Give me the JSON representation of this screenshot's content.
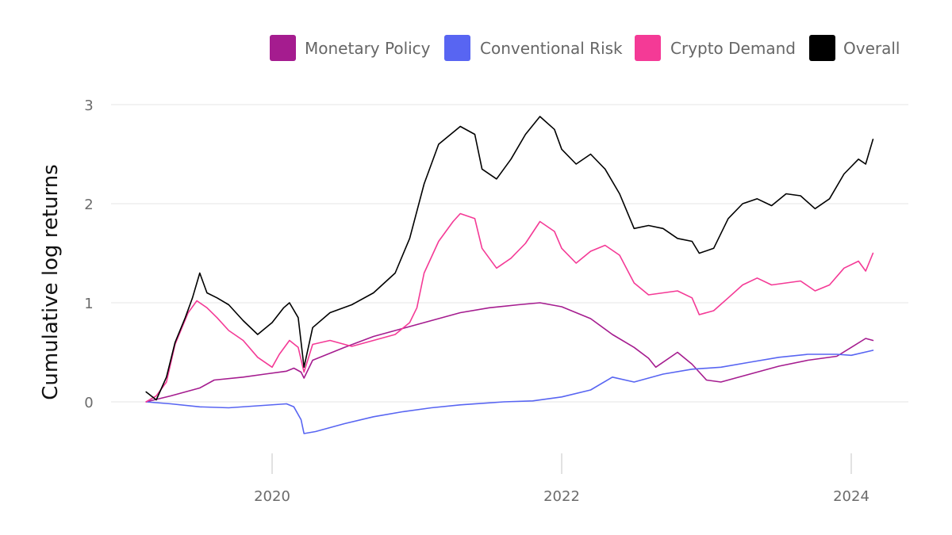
{
  "chart_data": {
    "type": "line",
    "ylabel": "Cumulative log returns",
    "xlabel": "",
    "x_ticks": [
      {
        "label": "2020",
        "value": 2020.0
      },
      {
        "label": "2022",
        "value": 2022.0
      },
      {
        "label": "2024",
        "value": 2024.0
      }
    ],
    "y_ticks": [
      {
        "label": "0",
        "value": 0
      },
      {
        "label": "1",
        "value": 1
      },
      {
        "label": "2",
        "value": 2
      },
      {
        "label": "3",
        "value": 3
      }
    ],
    "xlim": [
      2019.0,
      2024.4
    ],
    "ylim": [
      -0.55,
      3.15
    ],
    "grid": "horizontal",
    "legend": "top-right",
    "series": [
      {
        "name": "Monetary Policy",
        "color": "#a51c8f",
        "points": [
          [
            2019.13,
            0.0
          ],
          [
            2019.3,
            0.06
          ],
          [
            2019.5,
            0.14
          ],
          [
            2019.6,
            0.22
          ],
          [
            2019.8,
            0.25
          ],
          [
            2019.95,
            0.28
          ],
          [
            2020.1,
            0.31
          ],
          [
            2020.15,
            0.34
          ],
          [
            2020.2,
            0.3
          ],
          [
            2020.22,
            0.24
          ],
          [
            2020.28,
            0.42
          ],
          [
            2020.5,
            0.55
          ],
          [
            2020.7,
            0.66
          ],
          [
            2020.9,
            0.74
          ],
          [
            2021.1,
            0.82
          ],
          [
            2021.3,
            0.9
          ],
          [
            2021.5,
            0.95
          ],
          [
            2021.7,
            0.98
          ],
          [
            2021.85,
            1.0
          ],
          [
            2022.0,
            0.96
          ],
          [
            2022.2,
            0.84
          ],
          [
            2022.35,
            0.68
          ],
          [
            2022.5,
            0.55
          ],
          [
            2022.6,
            0.44
          ],
          [
            2022.65,
            0.35
          ],
          [
            2022.8,
            0.5
          ],
          [
            2022.9,
            0.38
          ],
          [
            2023.0,
            0.22
          ],
          [
            2023.1,
            0.2
          ],
          [
            2023.3,
            0.28
          ],
          [
            2023.5,
            0.36
          ],
          [
            2023.7,
            0.42
          ],
          [
            2023.9,
            0.46
          ],
          [
            2024.0,
            0.55
          ],
          [
            2024.1,
            0.64
          ],
          [
            2024.15,
            0.62
          ]
        ]
      },
      {
        "name": "Conventional Risk",
        "color": "#5865f2",
        "points": [
          [
            2019.13,
            0.0
          ],
          [
            2019.3,
            -0.02
          ],
          [
            2019.5,
            -0.05
          ],
          [
            2019.7,
            -0.06
          ],
          [
            2019.9,
            -0.04
          ],
          [
            2020.1,
            -0.02
          ],
          [
            2020.15,
            -0.05
          ],
          [
            2020.2,
            -0.18
          ],
          [
            2020.22,
            -0.32
          ],
          [
            2020.3,
            -0.3
          ],
          [
            2020.5,
            -0.22
          ],
          [
            2020.7,
            -0.15
          ],
          [
            2020.9,
            -0.1
          ],
          [
            2021.1,
            -0.06
          ],
          [
            2021.3,
            -0.03
          ],
          [
            2021.6,
            0.0
          ],
          [
            2021.8,
            0.01
          ],
          [
            2022.0,
            0.05
          ],
          [
            2022.2,
            0.12
          ],
          [
            2022.35,
            0.25
          ],
          [
            2022.5,
            0.2
          ],
          [
            2022.7,
            0.28
          ],
          [
            2022.9,
            0.33
          ],
          [
            2023.1,
            0.35
          ],
          [
            2023.3,
            0.4
          ],
          [
            2023.5,
            0.45
          ],
          [
            2023.7,
            0.48
          ],
          [
            2023.9,
            0.48
          ],
          [
            2024.0,
            0.47
          ],
          [
            2024.15,
            0.52
          ]
        ]
      },
      {
        "name": "Crypto Demand",
        "color": "#f43a96",
        "points": [
          [
            2019.13,
            0.0
          ],
          [
            2019.2,
            0.06
          ],
          [
            2019.27,
            0.2
          ],
          [
            2019.33,
            0.58
          ],
          [
            2019.42,
            0.9
          ],
          [
            2019.48,
            1.02
          ],
          [
            2019.55,
            0.95
          ],
          [
            2019.62,
            0.85
          ],
          [
            2019.7,
            0.72
          ],
          [
            2019.8,
            0.62
          ],
          [
            2019.9,
            0.45
          ],
          [
            2020.0,
            0.35
          ],
          [
            2020.05,
            0.48
          ],
          [
            2020.12,
            0.62
          ],
          [
            2020.18,
            0.55
          ],
          [
            2020.22,
            0.3
          ],
          [
            2020.28,
            0.58
          ],
          [
            2020.4,
            0.62
          ],
          [
            2020.55,
            0.56
          ],
          [
            2020.7,
            0.62
          ],
          [
            2020.85,
            0.68
          ],
          [
            2020.95,
            0.8
          ],
          [
            2021.0,
            0.95
          ],
          [
            2021.05,
            1.3
          ],
          [
            2021.15,
            1.62
          ],
          [
            2021.25,
            1.82
          ],
          [
            2021.3,
            1.9
          ],
          [
            2021.4,
            1.85
          ],
          [
            2021.45,
            1.55
          ],
          [
            2021.55,
            1.35
          ],
          [
            2021.65,
            1.45
          ],
          [
            2021.75,
            1.6
          ],
          [
            2021.85,
            1.82
          ],
          [
            2021.95,
            1.72
          ],
          [
            2022.0,
            1.55
          ],
          [
            2022.1,
            1.4
          ],
          [
            2022.2,
            1.52
          ],
          [
            2022.3,
            1.58
          ],
          [
            2022.4,
            1.48
          ],
          [
            2022.5,
            1.2
          ],
          [
            2022.6,
            1.08
          ],
          [
            2022.7,
            1.1
          ],
          [
            2022.8,
            1.12
          ],
          [
            2022.9,
            1.05
          ],
          [
            2022.95,
            0.88
          ],
          [
            2023.05,
            0.92
          ],
          [
            2023.15,
            1.05
          ],
          [
            2023.25,
            1.18
          ],
          [
            2023.35,
            1.25
          ],
          [
            2023.45,
            1.18
          ],
          [
            2023.55,
            1.2
          ],
          [
            2023.65,
            1.22
          ],
          [
            2023.75,
            1.12
          ],
          [
            2023.85,
            1.18
          ],
          [
            2023.95,
            1.35
          ],
          [
            2024.05,
            1.42
          ],
          [
            2024.1,
            1.32
          ],
          [
            2024.15,
            1.5
          ]
        ]
      },
      {
        "name": "Overall",
        "color": "#000000",
        "points": [
          [
            2019.13,
            0.1
          ],
          [
            2019.2,
            0.02
          ],
          [
            2019.27,
            0.25
          ],
          [
            2019.33,
            0.6
          ],
          [
            2019.4,
            0.85
          ],
          [
            2019.45,
            1.05
          ],
          [
            2019.5,
            1.3
          ],
          [
            2019.55,
            1.1
          ],
          [
            2019.62,
            1.05
          ],
          [
            2019.7,
            0.98
          ],
          [
            2019.8,
            0.82
          ],
          [
            2019.9,
            0.68
          ],
          [
            2020.0,
            0.8
          ],
          [
            2020.08,
            0.95
          ],
          [
            2020.12,
            1.0
          ],
          [
            2020.18,
            0.85
          ],
          [
            2020.22,
            0.35
          ],
          [
            2020.28,
            0.75
          ],
          [
            2020.4,
            0.9
          ],
          [
            2020.55,
            0.98
          ],
          [
            2020.7,
            1.1
          ],
          [
            2020.85,
            1.3
          ],
          [
            2020.95,
            1.65
          ],
          [
            2021.05,
            2.2
          ],
          [
            2021.15,
            2.6
          ],
          [
            2021.25,
            2.72
          ],
          [
            2021.3,
            2.78
          ],
          [
            2021.4,
            2.7
          ],
          [
            2021.45,
            2.35
          ],
          [
            2021.55,
            2.25
          ],
          [
            2021.65,
            2.45
          ],
          [
            2021.75,
            2.7
          ],
          [
            2021.85,
            2.88
          ],
          [
            2021.95,
            2.75
          ],
          [
            2022.0,
            2.55
          ],
          [
            2022.1,
            2.4
          ],
          [
            2022.2,
            2.5
          ],
          [
            2022.3,
            2.35
          ],
          [
            2022.4,
            2.1
          ],
          [
            2022.5,
            1.75
          ],
          [
            2022.6,
            1.78
          ],
          [
            2022.7,
            1.75
          ],
          [
            2022.8,
            1.65
          ],
          [
            2022.9,
            1.62
          ],
          [
            2022.95,
            1.5
          ],
          [
            2023.05,
            1.55
          ],
          [
            2023.15,
            1.85
          ],
          [
            2023.25,
            2.0
          ],
          [
            2023.35,
            2.05
          ],
          [
            2023.45,
            1.98
          ],
          [
            2023.55,
            2.1
          ],
          [
            2023.65,
            2.08
          ],
          [
            2023.75,
            1.95
          ],
          [
            2023.85,
            2.05
          ],
          [
            2023.95,
            2.3
          ],
          [
            2024.05,
            2.45
          ],
          [
            2024.1,
            2.4
          ],
          [
            2024.15,
            2.65
          ]
        ]
      }
    ]
  }
}
